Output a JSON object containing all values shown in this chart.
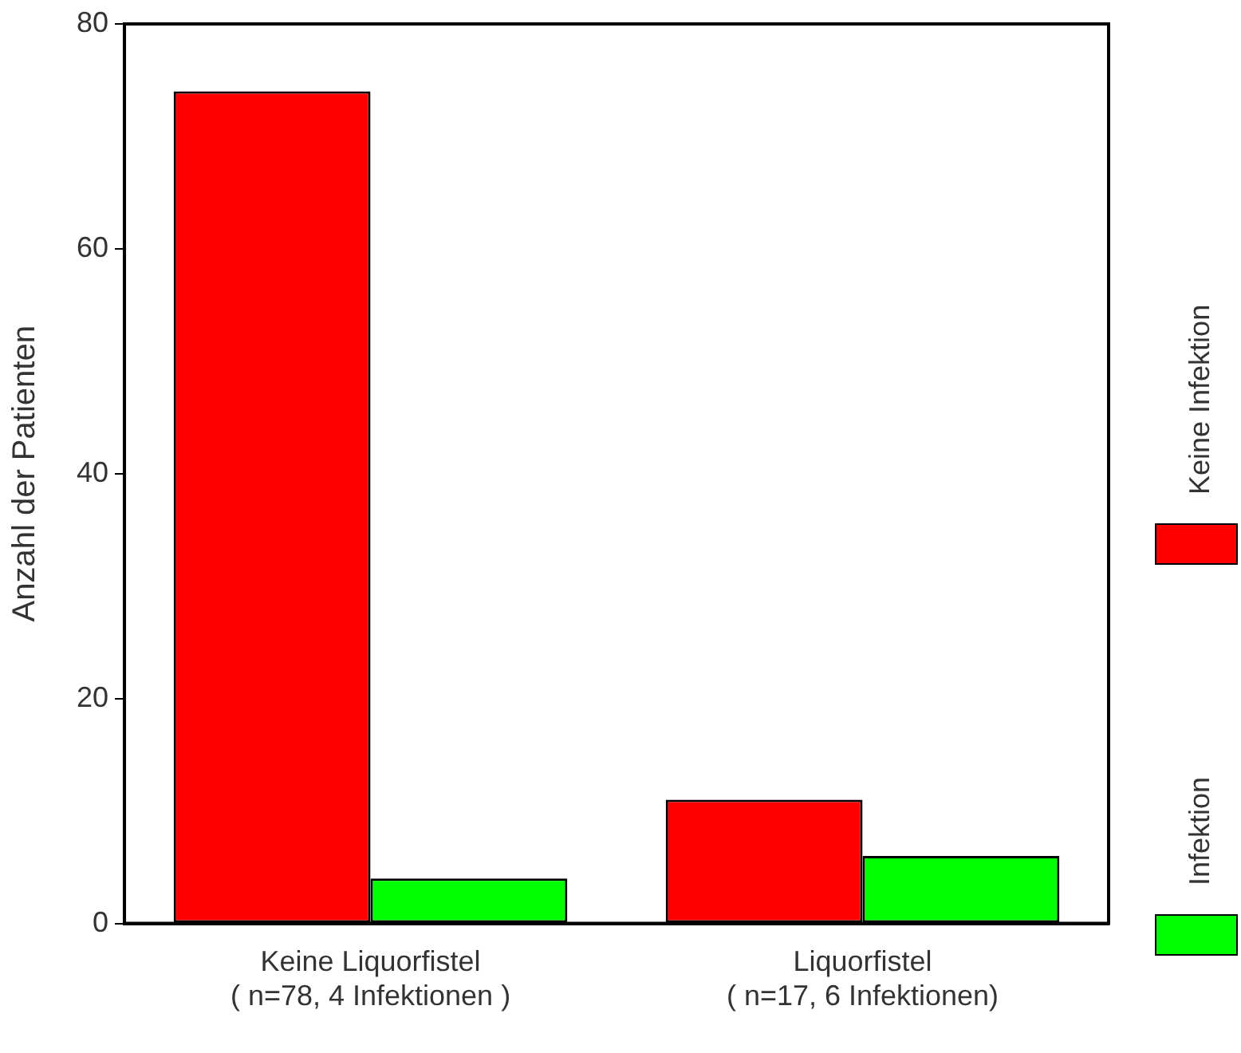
{
  "chart_data": {
    "type": "bar",
    "ylabel": "Anzahl der Patienten",
    "categories": [
      "Keine Liquorfistel\n( n=78, 4 Infektionen )",
      "Liquorfistel\n( n=17, 6 Infektionen)"
    ],
    "series": [
      {
        "name": "Keine Infektion",
        "color": "#ff0000",
        "values": [
          74,
          11
        ]
      },
      {
        "name": "Infektion",
        "color": "#00ff00",
        "values": [
          4,
          6
        ]
      }
    ],
    "ylim": [
      0,
      80
    ],
    "yticks": [
      0,
      20,
      40,
      60,
      80
    ],
    "grid": false,
    "legend": "right"
  }
}
